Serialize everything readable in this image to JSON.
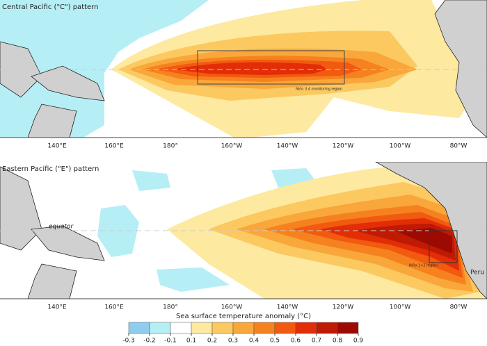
{
  "panels": [
    {
      "title": "Central Pacific (\"C\") pattern",
      "region_label": "Niño 3.4 monitoring region"
    },
    {
      "title": "Eastern Pacific (\"E\") pattern",
      "region_label": "Niño 1+2 region",
      "equator_label": "equator",
      "country_label": "Peru"
    }
  ],
  "longitudes": [
    "140°E",
    "160°E",
    "180°",
    "160°W",
    "140°W",
    "120°W",
    "100°W",
    "80°W"
  ],
  "colorbar": {
    "title": "Sea surface temperature anomaly (°C)",
    "ticks": [
      -0.3,
      -0.2,
      -0.1,
      0.1,
      0.2,
      0.3,
      0.4,
      0.5,
      0.6,
      0.7,
      0.8,
      0.9
    ],
    "colors": [
      "#8fcdf0",
      "#b6eef6",
      "#ffffff",
      "#fde9a0",
      "#fcc860",
      "#f9a73a",
      "#f6821f",
      "#f25a10",
      "#e22d07",
      "#c01a04",
      "#9c0a02"
    ]
  }
}
